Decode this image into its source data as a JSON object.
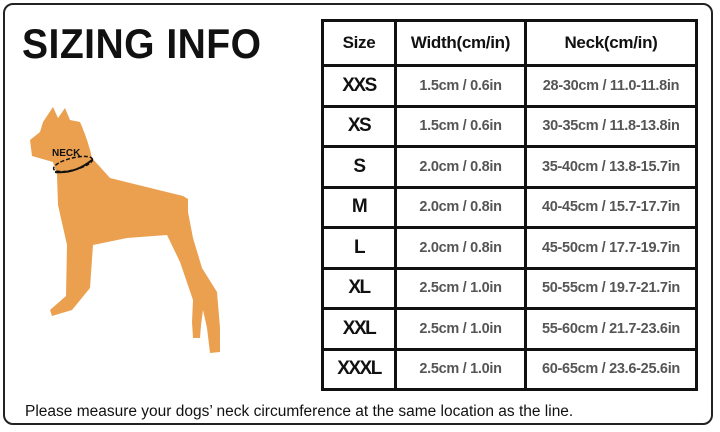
{
  "title": "SIZING INFO",
  "diagram": {
    "neck_label": "NECK",
    "dog_color": "#eba04f"
  },
  "table": {
    "headers": [
      "Size",
      "Width(cm/in)",
      "Neck(cm/in)"
    ],
    "rows": [
      {
        "size": "XXS",
        "width": "1.5cm / 0.6in",
        "neck": "28-30cm / 11.0-11.8in"
      },
      {
        "size": "XS",
        "width": "1.5cm / 0.6in",
        "neck": "30-35cm / 11.8-13.8in"
      },
      {
        "size": "S",
        "width": "2.0cm / 0.8in",
        "neck": "35-40cm / 13.8-15.7in"
      },
      {
        "size": "M",
        "width": "2.0cm / 0.8in",
        "neck": "40-45cm / 15.7-17.7in"
      },
      {
        "size": "L",
        "width": "2.0cm / 0.8in",
        "neck": "45-50cm / 17.7-19.7in"
      },
      {
        "size": "XL",
        "width": "2.5cm / 1.0in",
        "neck": "50-55cm / 19.7-21.7in"
      },
      {
        "size": "XXL",
        "width": "2.5cm / 1.0in",
        "neck": "55-60cm / 21.7-23.6in"
      },
      {
        "size": "XXXL",
        "width": "2.5cm / 1.0in",
        "neck": "60-65cm / 23.6-25.6in"
      }
    ]
  },
  "footer": "Please measure your dogs’  neck circumference at the same location as the line."
}
